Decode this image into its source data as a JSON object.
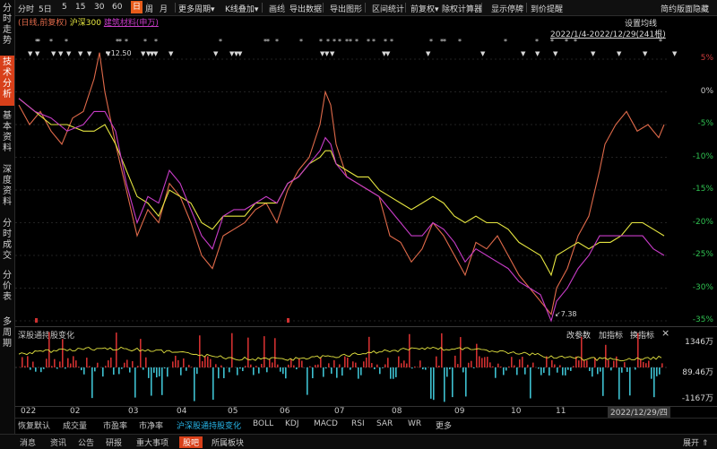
{
  "left_tabs": [
    {
      "label": "分时走势",
      "active": false
    },
    {
      "label": "技术分析",
      "active": true
    },
    {
      "label": "基本资料",
      "active": false
    },
    {
      "label": "深度资料",
      "active": false
    },
    {
      "label": "分时成交",
      "active": false
    },
    {
      "label": "分价表",
      "active": false
    },
    {
      "label": "多周期",
      "active": false
    }
  ],
  "toolbar": {
    "items": [
      "分时",
      "5日",
      "5",
      "15",
      "30",
      "60",
      "日",
      "周",
      "月",
      "更多周期",
      "K线叠加",
      "画线",
      "导出数据",
      "导出图形",
      "区间统计",
      "前复权",
      "除权计算器",
      "显示停牌",
      "到价提醒"
    ],
    "active": "日",
    "dropdown_items": [
      "更多周期",
      "K线叠加",
      "前复权"
    ],
    "right_simple": "简约版面",
    "right_hide": "隐藏"
  },
  "legend": {
    "item1": "(日线,前复权)",
    "item2": "沪深300",
    "item3": "建筑材料(申万)"
  },
  "settings_label": "设置均线",
  "date_range": "2022/1/4-2022/12/29(241根)",
  "annotations": {
    "high": "12.50",
    "low": "7.38"
  },
  "month_labels": [
    "022",
    "02",
    "03",
    "04",
    "05",
    "06",
    "07",
    "08",
    "09",
    "10",
    "11"
  ],
  "current_date": "2022/12/29/四",
  "sub_chart": {
    "title": "深股通持股变化",
    "buttons": [
      "改参数",
      "加指标",
      "换指标"
    ],
    "close": "×",
    "ticks": [
      "1346万",
      "89.46万",
      "-1167万"
    ]
  },
  "indicator_tabs": [
    "恢复默认",
    "成交量",
    "市盈率",
    "市净率",
    "沪深股通持股变化",
    "BOLL",
    "KDJ",
    "MACD",
    "RSI",
    "SAR",
    "WR",
    "更多"
  ],
  "indicator_active": "沪深股通持股变化",
  "bottom_tabs": [
    "消息",
    "资讯",
    "公告",
    "研报",
    "重大事项",
    "股吧",
    "所属板块"
  ],
  "bottom_active": "股吧",
  "expand_label": "展开",
  "chart_data": {
    "type": "line",
    "x": [
      "2022-01",
      "2022-02",
      "2022-03",
      "2022-04",
      "2022-05",
      "2022-06",
      "2022-07",
      "2022-08",
      "2022-09",
      "2022-10",
      "2022-11",
      "2022-12"
    ],
    "y_ticks": [
      "5%",
      "0%",
      "-5%",
      "-10%",
      "-15%",
      "-20%",
      "-25%",
      "-30%",
      "-35%"
    ],
    "ylim": [
      -36,
      8
    ],
    "series": [
      {
        "name": "(日线,前复权)",
        "color": "#e06a4a",
        "points": [
          [
            0,
            -2
          ],
          [
            4,
            -5
          ],
          [
            8,
            -3
          ],
          [
            12,
            -6
          ],
          [
            16,
            -8
          ],
          [
            20,
            -4
          ],
          [
            24,
            -3
          ],
          [
            28,
            2
          ],
          [
            30,
            6
          ],
          [
            32,
            0
          ],
          [
            36,
            -8
          ],
          [
            40,
            -15
          ],
          [
            44,
            -22
          ],
          [
            48,
            -18
          ],
          [
            52,
            -20
          ],
          [
            56,
            -14
          ],
          [
            60,
            -16
          ],
          [
            64,
            -20
          ],
          [
            68,
            -25
          ],
          [
            72,
            -27
          ],
          [
            76,
            -22
          ],
          [
            80,
            -21
          ],
          [
            84,
            -20
          ],
          [
            88,
            -18
          ],
          [
            92,
            -17
          ],
          [
            96,
            -20
          ],
          [
            100,
            -15
          ],
          [
            104,
            -12
          ],
          [
            108,
            -10
          ],
          [
            112,
            -5
          ],
          [
            114,
            0
          ],
          [
            116,
            -2
          ],
          [
            118,
            -8
          ],
          [
            122,
            -13
          ],
          [
            126,
            -14
          ],
          [
            130,
            -15
          ],
          [
            134,
            -16
          ],
          [
            138,
            -22
          ],
          [
            142,
            -23
          ],
          [
            146,
            -26
          ],
          [
            150,
            -24
          ],
          [
            154,
            -20
          ],
          [
            158,
            -22
          ],
          [
            162,
            -25
          ],
          [
            166,
            -28
          ],
          [
            170,
            -23
          ],
          [
            174,
            -24
          ],
          [
            178,
            -22
          ],
          [
            182,
            -25
          ],
          [
            186,
            -28
          ],
          [
            190,
            -30
          ],
          [
            194,
            -32
          ],
          [
            198,
            -34
          ],
          [
            200,
            -30
          ],
          [
            204,
            -27
          ],
          [
            208,
            -22
          ],
          [
            212,
            -19
          ],
          [
            216,
            -12
          ],
          [
            218,
            -8
          ],
          [
            222,
            -5
          ],
          [
            226,
            -3
          ],
          [
            230,
            -6
          ],
          [
            234,
            -5
          ],
          [
            238,
            -7
          ],
          [
            240,
            -5
          ]
        ]
      },
      {
        "name": "沪深300",
        "color": "#e5e540",
        "points": [
          [
            0,
            -1
          ],
          [
            6,
            -3
          ],
          [
            12,
            -5
          ],
          [
            18,
            -5
          ],
          [
            24,
            -6
          ],
          [
            28,
            -6
          ],
          [
            32,
            -5
          ],
          [
            36,
            -8
          ],
          [
            40,
            -12
          ],
          [
            44,
            -16
          ],
          [
            48,
            -17
          ],
          [
            52,
            -19
          ],
          [
            56,
            -15
          ],
          [
            60,
            -16
          ],
          [
            64,
            -17
          ],
          [
            68,
            -20
          ],
          [
            72,
            -21
          ],
          [
            76,
            -19
          ],
          [
            80,
            -19
          ],
          [
            84,
            -19
          ],
          [
            88,
            -17
          ],
          [
            92,
            -17
          ],
          [
            96,
            -17
          ],
          [
            100,
            -14
          ],
          [
            104,
            -13
          ],
          [
            108,
            -11
          ],
          [
            112,
            -10
          ],
          [
            114,
            -9
          ],
          [
            116,
            -9
          ],
          [
            118,
            -11
          ],
          [
            122,
            -12
          ],
          [
            126,
            -13
          ],
          [
            130,
            -13
          ],
          [
            134,
            -15
          ],
          [
            138,
            -16
          ],
          [
            142,
            -17
          ],
          [
            146,
            -18
          ],
          [
            150,
            -17
          ],
          [
            154,
            -16
          ],
          [
            158,
            -17
          ],
          [
            162,
            -19
          ],
          [
            166,
            -20
          ],
          [
            170,
            -19
          ],
          [
            174,
            -20
          ],
          [
            178,
            -20
          ],
          [
            182,
            -21
          ],
          [
            186,
            -23
          ],
          [
            190,
            -24
          ],
          [
            194,
            -25
          ],
          [
            198,
            -28
          ],
          [
            200,
            -25
          ],
          [
            204,
            -24
          ],
          [
            208,
            -23
          ],
          [
            212,
            -24
          ],
          [
            216,
            -23
          ],
          [
            220,
            -23
          ],
          [
            224,
            -22
          ],
          [
            228,
            -20
          ],
          [
            232,
            -20
          ],
          [
            236,
            -21
          ],
          [
            240,
            -22
          ]
        ]
      },
      {
        "name": "建筑材料(申万)",
        "color": "#c83cc8",
        "points": [
          [
            0,
            -1
          ],
          [
            6,
            -3
          ],
          [
            12,
            -4
          ],
          [
            18,
            -6
          ],
          [
            24,
            -5
          ],
          [
            28,
            -3
          ],
          [
            32,
            -3
          ],
          [
            36,
            -6
          ],
          [
            40,
            -14
          ],
          [
            44,
            -20
          ],
          [
            48,
            -16
          ],
          [
            52,
            -17
          ],
          [
            56,
            -12
          ],
          [
            60,
            -14
          ],
          [
            64,
            -18
          ],
          [
            68,
            -22
          ],
          [
            72,
            -24
          ],
          [
            76,
            -19
          ],
          [
            80,
            -18
          ],
          [
            84,
            -18
          ],
          [
            88,
            -17
          ],
          [
            92,
            -16
          ],
          [
            96,
            -17
          ],
          [
            100,
            -14
          ],
          [
            104,
            -13
          ],
          [
            108,
            -11
          ],
          [
            112,
            -9
          ],
          [
            114,
            -7
          ],
          [
            116,
            -8
          ],
          [
            118,
            -11
          ],
          [
            122,
            -13
          ],
          [
            126,
            -14
          ],
          [
            130,
            -15
          ],
          [
            134,
            -16
          ],
          [
            138,
            -18
          ],
          [
            142,
            -20
          ],
          [
            146,
            -22
          ],
          [
            150,
            -22
          ],
          [
            154,
            -20
          ],
          [
            158,
            -21
          ],
          [
            162,
            -23
          ],
          [
            166,
            -26
          ],
          [
            170,
            -24
          ],
          [
            174,
            -25
          ],
          [
            178,
            -26
          ],
          [
            182,
            -27
          ],
          [
            186,
            -29
          ],
          [
            190,
            -30
          ],
          [
            194,
            -31
          ],
          [
            198,
            -35
          ],
          [
            200,
            -32
          ],
          [
            204,
            -30
          ],
          [
            208,
            -27
          ],
          [
            212,
            -25
          ],
          [
            216,
            -22
          ],
          [
            220,
            -22
          ],
          [
            224,
            -22
          ],
          [
            228,
            -22
          ],
          [
            232,
            -22
          ],
          [
            236,
            -24
          ],
          [
            240,
            -25
          ]
        ]
      }
    ]
  }
}
